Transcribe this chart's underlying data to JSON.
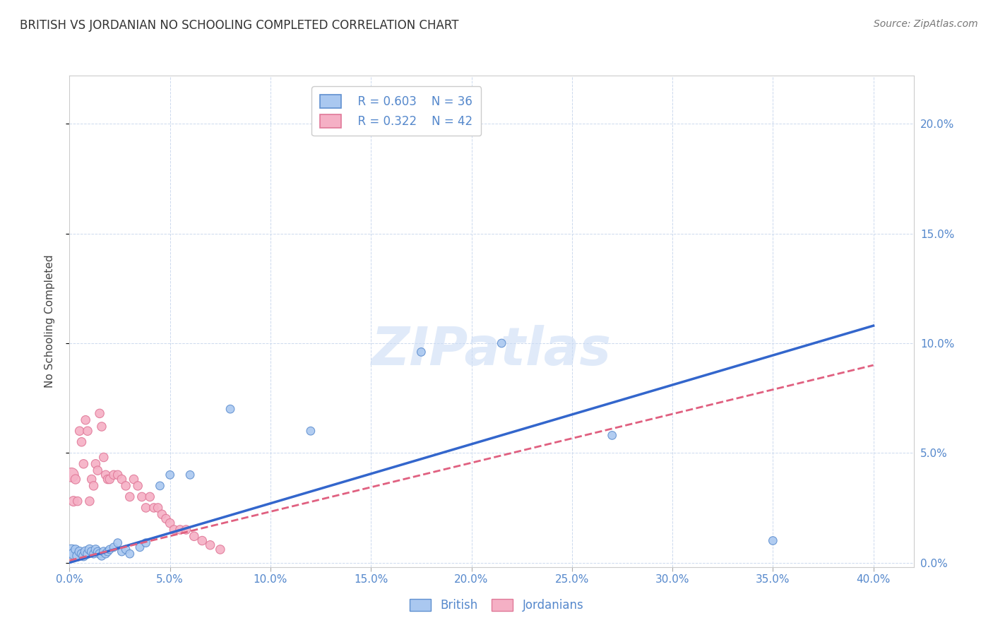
{
  "title": "BRITISH VS JORDANIAN NO SCHOOLING COMPLETED CORRELATION CHART",
  "source": "Source: ZipAtlas.com",
  "ylabel": "No Schooling Completed",
  "xlabel": "",
  "xlim": [
    0.0,
    0.42
  ],
  "ylim": [
    -0.002,
    0.222
  ],
  "xticks": [
    0.0,
    0.05,
    0.1,
    0.15,
    0.2,
    0.25,
    0.3,
    0.35,
    0.4
  ],
  "yticks": [
    0.0,
    0.05,
    0.1,
    0.15,
    0.2
  ],
  "ytick_labels_right": true,
  "watermark": "ZIPatlas",
  "legend_r_british": "R = 0.603",
  "legend_n_british": "N = 36",
  "legend_r_jordanian": "R = 0.322",
  "legend_n_jordanian": "N = 42",
  "british_color": "#aac8f0",
  "jordanian_color": "#f5b0c5",
  "british_edge_color": "#6090d0",
  "jordanian_edge_color": "#e07898",
  "british_line_color": "#3366cc",
  "jordanian_line_color": "#e06080",
  "label_color": "#5588cc",
  "title_color": "#333333",
  "grid_color": "#ccd9ee",
  "british_regression": [
    0.0,
    0.108
  ],
  "jordanian_regression": [
    0.001,
    0.09
  ],
  "british_x": [
    0.001,
    0.002,
    0.003,
    0.004,
    0.005,
    0.006,
    0.007,
    0.008,
    0.009,
    0.01,
    0.011,
    0.012,
    0.013,
    0.014,
    0.015,
    0.016,
    0.017,
    0.018,
    0.019,
    0.02,
    0.022,
    0.024,
    0.026,
    0.028,
    0.03,
    0.035,
    0.038,
    0.045,
    0.05,
    0.06,
    0.08,
    0.12,
    0.175,
    0.215,
    0.27,
    0.35
  ],
  "british_y": [
    0.005,
    0.004,
    0.006,
    0.003,
    0.005,
    0.004,
    0.003,
    0.005,
    0.004,
    0.006,
    0.005,
    0.004,
    0.006,
    0.005,
    0.004,
    0.003,
    0.005,
    0.004,
    0.005,
    0.006,
    0.007,
    0.009,
    0.005,
    0.006,
    0.004,
    0.007,
    0.009,
    0.035,
    0.04,
    0.04,
    0.07,
    0.06,
    0.096,
    0.1,
    0.058,
    0.01
  ],
  "british_size": [
    200,
    120,
    80,
    100,
    90,
    80,
    90,
    100,
    80,
    90,
    80,
    70,
    80,
    70,
    80,
    70,
    80,
    70,
    70,
    70,
    70,
    70,
    70,
    70,
    70,
    70,
    70,
    70,
    70,
    70,
    70,
    70,
    70,
    70,
    70,
    70
  ],
  "jordanian_x": [
    0.001,
    0.002,
    0.003,
    0.004,
    0.005,
    0.006,
    0.007,
    0.008,
    0.009,
    0.01,
    0.011,
    0.012,
    0.013,
    0.014,
    0.015,
    0.016,
    0.017,
    0.018,
    0.019,
    0.02,
    0.022,
    0.024,
    0.026,
    0.028,
    0.03,
    0.032,
    0.034,
    0.036,
    0.038,
    0.04,
    0.042,
    0.044,
    0.046,
    0.048,
    0.05,
    0.052,
    0.055,
    0.058,
    0.062,
    0.066,
    0.07,
    0.075
  ],
  "jordanian_y": [
    0.04,
    0.028,
    0.038,
    0.028,
    0.06,
    0.055,
    0.045,
    0.065,
    0.06,
    0.028,
    0.038,
    0.035,
    0.045,
    0.042,
    0.068,
    0.062,
    0.048,
    0.04,
    0.038,
    0.038,
    0.04,
    0.04,
    0.038,
    0.035,
    0.03,
    0.038,
    0.035,
    0.03,
    0.025,
    0.03,
    0.025,
    0.025,
    0.022,
    0.02,
    0.018,
    0.015,
    0.015,
    0.015,
    0.012,
    0.01,
    0.008,
    0.006
  ],
  "jordanian_size": [
    200,
    100,
    90,
    80,
    80,
    80,
    80,
    80,
    80,
    80,
    80,
    80,
    80,
    80,
    80,
    80,
    80,
    80,
    80,
    80,
    80,
    80,
    80,
    80,
    80,
    80,
    80,
    80,
    80,
    80,
    80,
    80,
    80,
    80,
    80,
    80,
    80,
    80,
    80,
    80,
    80,
    80
  ]
}
